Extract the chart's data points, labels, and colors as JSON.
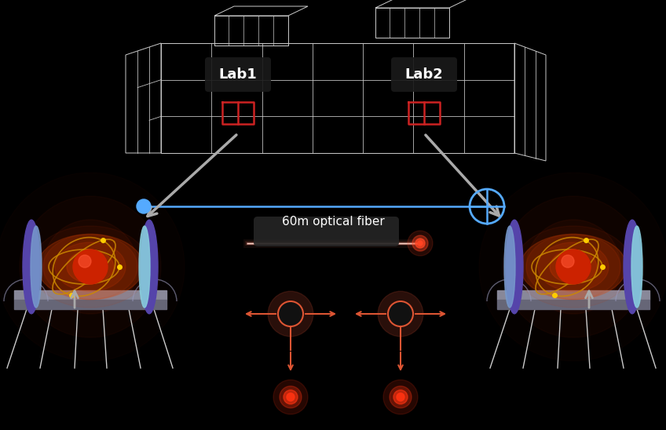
{
  "background_color": "#000000",
  "fig_width": 8.48,
  "fig_height": 5.48,
  "lab1_label": "Lab1",
  "lab2_label": "Lab2",
  "optical_fiber_label": "60m optical fiber"
}
